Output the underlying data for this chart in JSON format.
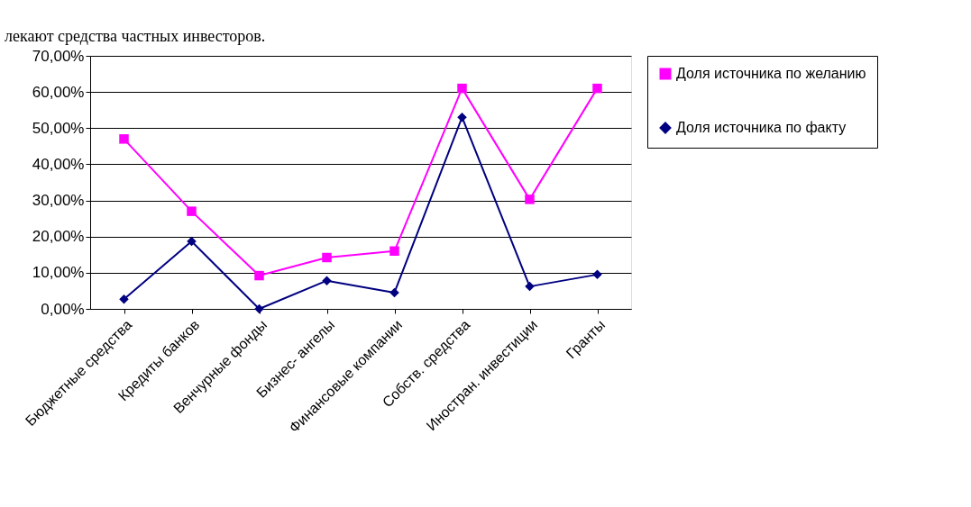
{
  "chart_data": {
    "type": "line",
    "annotations": [
      "лекают средства частных инвесторов."
    ],
    "categories": [
      "Бюджетные средства",
      "Кредиты банков",
      "Венчурные фонды",
      "Бизнес- ангелы",
      "Финансовые компании",
      "Собств.  средства",
      "Иностран. инвестиции",
      "Гранты"
    ],
    "series": [
      {
        "name": "Доля источника по желанию",
        "color": "#ff00ff",
        "marker": "square",
        "values": [
          47,
          27,
          9.2,
          14.2,
          16,
          61,
          30.3,
          61
        ]
      },
      {
        "name": "Доля источника по факту",
        "color": "#000080",
        "marker": "diamond",
        "values": [
          2.7,
          18.7,
          0,
          7.8,
          4.5,
          53,
          6.2,
          9.5
        ]
      }
    ],
    "ylim": [
      0,
      70
    ],
    "yticks": [
      {
        "value": 0,
        "label": "0,00%"
      },
      {
        "value": 10,
        "label": "10,00%"
      },
      {
        "value": 20,
        "label": "20,00%"
      },
      {
        "value": 30,
        "label": "30,00%"
      },
      {
        "value": 40,
        "label": "40,00%"
      },
      {
        "value": 50,
        "label": "50,00%"
      },
      {
        "value": 60,
        "label": "60,00%"
      },
      {
        "value": 70,
        "label": "70,00%"
      }
    ],
    "grid": "y",
    "legend": "right",
    "line_style": "solid"
  }
}
